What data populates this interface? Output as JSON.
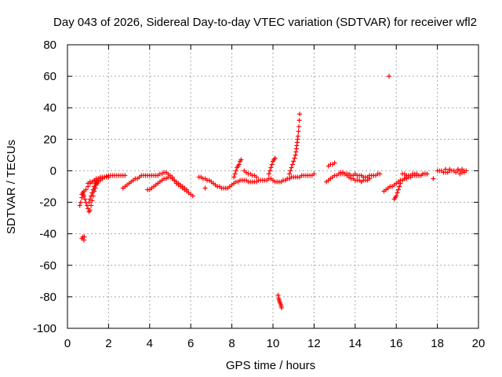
{
  "chart_data": {
    "type": "scatter",
    "title": "Day 043 of 2026, Sidereal Day-to-day VTEC variation (SDTVAR) for receiver wfl2",
    "xlabel": "GPS time / hours",
    "ylabel": "SDTVAR / TECUs",
    "xlim": [
      0,
      20
    ],
    "ylim": [
      -100,
      80
    ],
    "xticks": [
      0,
      2,
      4,
      6,
      8,
      10,
      12,
      14,
      16,
      18,
      20
    ],
    "yticks": [
      -100,
      -80,
      -60,
      -40,
      -20,
      0,
      20,
      40,
      60,
      80
    ],
    "grid": true,
    "marker": "plus",
    "color": "#ff0000",
    "series": [
      {
        "name": "",
        "x": [
          0.6,
          0.65,
          0.7,
          0.75,
          0.8,
          0.85,
          0.9,
          0.95,
          1.0,
          1.05,
          1.1,
          1.15,
          1.2,
          1.25,
          1.3,
          1.35,
          1.4,
          1.45,
          1.5,
          0.7,
          0.75,
          0.8,
          0.9,
          1.0,
          1.1,
          1.2,
          1.3,
          1.4,
          1.5,
          1.6,
          1.7,
          1.8,
          1.9,
          2.0,
          2.1,
          2.2,
          2.3,
          2.4,
          2.5,
          2.6,
          2.7,
          2.8,
          0.7,
          0.75,
          0.8,
          0.82,
          1.0,
          1.1,
          1.2,
          1.3,
          1.4,
          1.5,
          1.6,
          1.7,
          1.8,
          1.9,
          2.0,
          1.05,
          1.1,
          1.15,
          1.2,
          1.25,
          1.3,
          1.35,
          1.4,
          1.5,
          1.6
        ],
        "y": [
          -22,
          -20,
          -17,
          -15,
          -16,
          -18,
          -20,
          -22,
          -24,
          -26,
          -25,
          -22,
          -19,
          -16,
          -13,
          -11,
          -9,
          -8,
          -7,
          -15,
          -14,
          -13,
          -12,
          -10,
          -8,
          -7,
          -6,
          -5,
          -5,
          -4,
          -4,
          -4,
          -3.5,
          -3,
          -3,
          -3,
          -3,
          -3,
          -3,
          -3,
          -3,
          -3,
          -43,
          -42,
          -44,
          -42,
          -8,
          -7,
          -7,
          -6,
          -6,
          -5,
          -5,
          -5,
          -4,
          -4,
          -4,
          -20,
          -18,
          -16,
          -14,
          -12,
          -10,
          -8,
          -7,
          -6,
          -6
        ]
      },
      {
        "name": "",
        "x": [
          2.7,
          2.8,
          2.9,
          3.0,
          3.1,
          3.2,
          3.3,
          3.4,
          3.5,
          3.6,
          3.7,
          3.8,
          3.9,
          4.0,
          4.1,
          4.2,
          4.3,
          4.4,
          4.5,
          4.6,
          4.7,
          4.8,
          4.9,
          5.0,
          5.1,
          5.2,
          5.3,
          5.4,
          5.5,
          5.6,
          5.7,
          5.8,
          5.9,
          6.0,
          6.1,
          3.9,
          4.0,
          4.1,
          4.2,
          4.3,
          4.4,
          4.5,
          4.6,
          4.7,
          4.8,
          4.9,
          5.0,
          5.1,
          5.2,
          5.3,
          5.4,
          5.5,
          5.6,
          5.7,
          5.8
        ],
        "y": [
          -11,
          -10,
          -9,
          -8,
          -7,
          -6,
          -5,
          -5,
          -4,
          -3,
          -3,
          -3,
          -3,
          -3,
          -3,
          -3,
          -3,
          -3,
          -2,
          -2,
          -1,
          -1,
          -2,
          -3,
          -4,
          -6,
          -8,
          -9,
          -10,
          -11,
          -12,
          -13,
          -14,
          -15,
          -16,
          -12,
          -12,
          -11,
          -10,
          -9,
          -8,
          -7,
          -6,
          -5,
          -5,
          -4,
          -4,
          -5,
          -6,
          -7,
          -8,
          -9,
          -10,
          -11,
          -12
        ]
      },
      {
        "name": "",
        "x": [
          6.4,
          6.5,
          6.6,
          6.7,
          6.8,
          6.9,
          7.0,
          7.1,
          7.2,
          7.3,
          7.4,
          7.5,
          7.6,
          7.7,
          7.8,
          7.9,
          8.0,
          8.1,
          8.2,
          8.3,
          8.4,
          8.5,
          8.6,
          8.7,
          8.8,
          8.9,
          9.0,
          9.1,
          9.2,
          9.3,
          9.4,
          9.5,
          9.6,
          9.7,
          9.8,
          9.9,
          10.0,
          10.1,
          10.2,
          10.3,
          10.4,
          10.5,
          10.6,
          10.7,
          10.8,
          10.9,
          11.0,
          11.1,
          11.2,
          11.3,
          11.4,
          11.5,
          11.6,
          11.7,
          11.8,
          11.9,
          12.0,
          6.7,
          8.1,
          8.15,
          8.2,
          8.25,
          8.3,
          8.35,
          8.4,
          8.45,
          8.6,
          8.7,
          8.8,
          8.9,
          9.0,
          9.1,
          9.2,
          9.8,
          9.85,
          9.9,
          9.95,
          10.0,
          10.05,
          10.1
        ],
        "y": [
          -4,
          -4,
          -5,
          -5,
          -6,
          -6,
          -7,
          -8,
          -9,
          -10,
          -10,
          -11,
          -11,
          -11,
          -11,
          -10,
          -9,
          -8,
          -7,
          -7,
          -6,
          -6,
          -6,
          -6,
          -7,
          -7,
          -7,
          -7,
          -7,
          -6,
          -6,
          -6,
          -6,
          -6,
          -5,
          -5,
          -6,
          -7,
          -7,
          -7,
          -7,
          -6,
          -6,
          -5,
          -5,
          -4,
          -4,
          -4,
          -4,
          -4,
          -3,
          -3,
          -3,
          -3,
          -3,
          -3,
          -2,
          -11,
          -4,
          -2,
          0,
          2,
          3,
          4,
          6,
          7,
          0,
          -1,
          -2,
          -2,
          -3,
          -3,
          -4,
          -2,
          0,
          2,
          4,
          6,
          7,
          8
        ]
      },
      {
        "name": "",
        "x": [
          10.25,
          10.28,
          10.3,
          10.32,
          10.35,
          10.38,
          10.4,
          10.42
        ],
        "y": [
          -79,
          -81,
          -82,
          -83,
          -84,
          -85,
          -86,
          -87
        ]
      },
      {
        "name": "",
        "x": [
          10.8,
          10.85,
          10.9,
          10.95,
          11.0,
          11.05,
          11.1,
          11.12,
          11.14,
          11.16,
          11.18,
          11.2,
          11.22,
          11.24,
          11.26,
          11.28,
          11.3
        ],
        "y": [
          -2,
          0,
          2,
          4,
          6,
          8,
          10,
          12,
          14,
          16,
          18,
          20,
          22,
          25,
          28,
          32,
          36
        ]
      },
      {
        "name": "",
        "x": [
          12.6,
          12.7,
          12.8,
          12.9,
          13.0,
          13.1,
          13.2,
          13.3,
          13.4,
          13.5,
          13.6,
          13.7,
          13.8,
          13.9,
          14.0,
          14.1,
          14.2,
          14.3,
          14.4,
          14.5,
          14.6,
          14.7,
          14.8,
          14.9,
          15.0,
          15.1,
          15.2,
          12.7,
          12.8,
          12.9,
          13.0,
          13.3,
          13.4,
          13.5,
          13.6,
          13.7,
          13.8,
          13.9,
          14.0,
          14.1,
          14.2,
          14.3,
          14.4,
          14.5,
          14.6,
          14.7
        ],
        "y": [
          -7,
          -6,
          -5,
          -4,
          -3,
          -3,
          -2,
          -2,
          -2,
          -2,
          -2,
          -2,
          -3,
          -3,
          -2,
          -3,
          -3,
          -3,
          -4,
          -4,
          -4,
          -3,
          -3,
          -3,
          -3,
          -2,
          -2,
          3,
          4,
          4,
          5,
          -1,
          -1,
          -2,
          -3,
          -4,
          -5,
          -5,
          -6,
          -6,
          -6,
          -7,
          -6,
          -6,
          -6,
          -5
        ]
      },
      {
        "name": "",
        "x": [
          15.65,
          15.4,
          15.5,
          15.6,
          15.7,
          15.8,
          15.9,
          16.0,
          16.1,
          16.2,
          16.3,
          16.4,
          16.5,
          16.6,
          16.7,
          16.8,
          16.9,
          17.0,
          17.1,
          17.2,
          17.3,
          17.4,
          17.5,
          15.9,
          15.95,
          16.0,
          16.05,
          16.1,
          16.15,
          16.2,
          16.3,
          16.4,
          16.5,
          16.6,
          16.3,
          16.4,
          16.5,
          16.6,
          16.7,
          16.8,
          16.9,
          17.0,
          17.1,
          17.2,
          17.3,
          17.4,
          17.5,
          17.8
        ],
        "y": [
          60,
          -13,
          -12,
          -11,
          -10,
          -10,
          -9,
          -8,
          -7,
          -6,
          -6,
          -5,
          -5,
          -4,
          -4,
          -3,
          -3,
          -3,
          -3,
          -3,
          -2,
          -2,
          -2,
          -18,
          -17,
          -16,
          -14,
          -12,
          -10,
          -8,
          -6,
          -5,
          -4,
          -3,
          -2,
          -2,
          -3,
          -3,
          -3,
          -2,
          -2,
          -2,
          -3,
          -3,
          -2,
          -2,
          -2,
          -5
        ]
      },
      {
        "name": "",
        "x": [
          18.0,
          18.1,
          18.2,
          18.3,
          18.4,
          18.5,
          18.6,
          18.7,
          18.8,
          18.9,
          19.0,
          19.1,
          19.2,
          19.3,
          19.4,
          18.4,
          18.6,
          18.8,
          19.0,
          19.2,
          19.1,
          19.2,
          19.3
        ],
        "y": [
          0,
          0,
          0,
          -1,
          -1,
          -1,
          0,
          0,
          0,
          -1,
          0,
          0,
          -1,
          -1,
          0,
          1,
          1,
          0,
          1,
          1,
          -2,
          -1,
          0
        ]
      }
    ]
  }
}
